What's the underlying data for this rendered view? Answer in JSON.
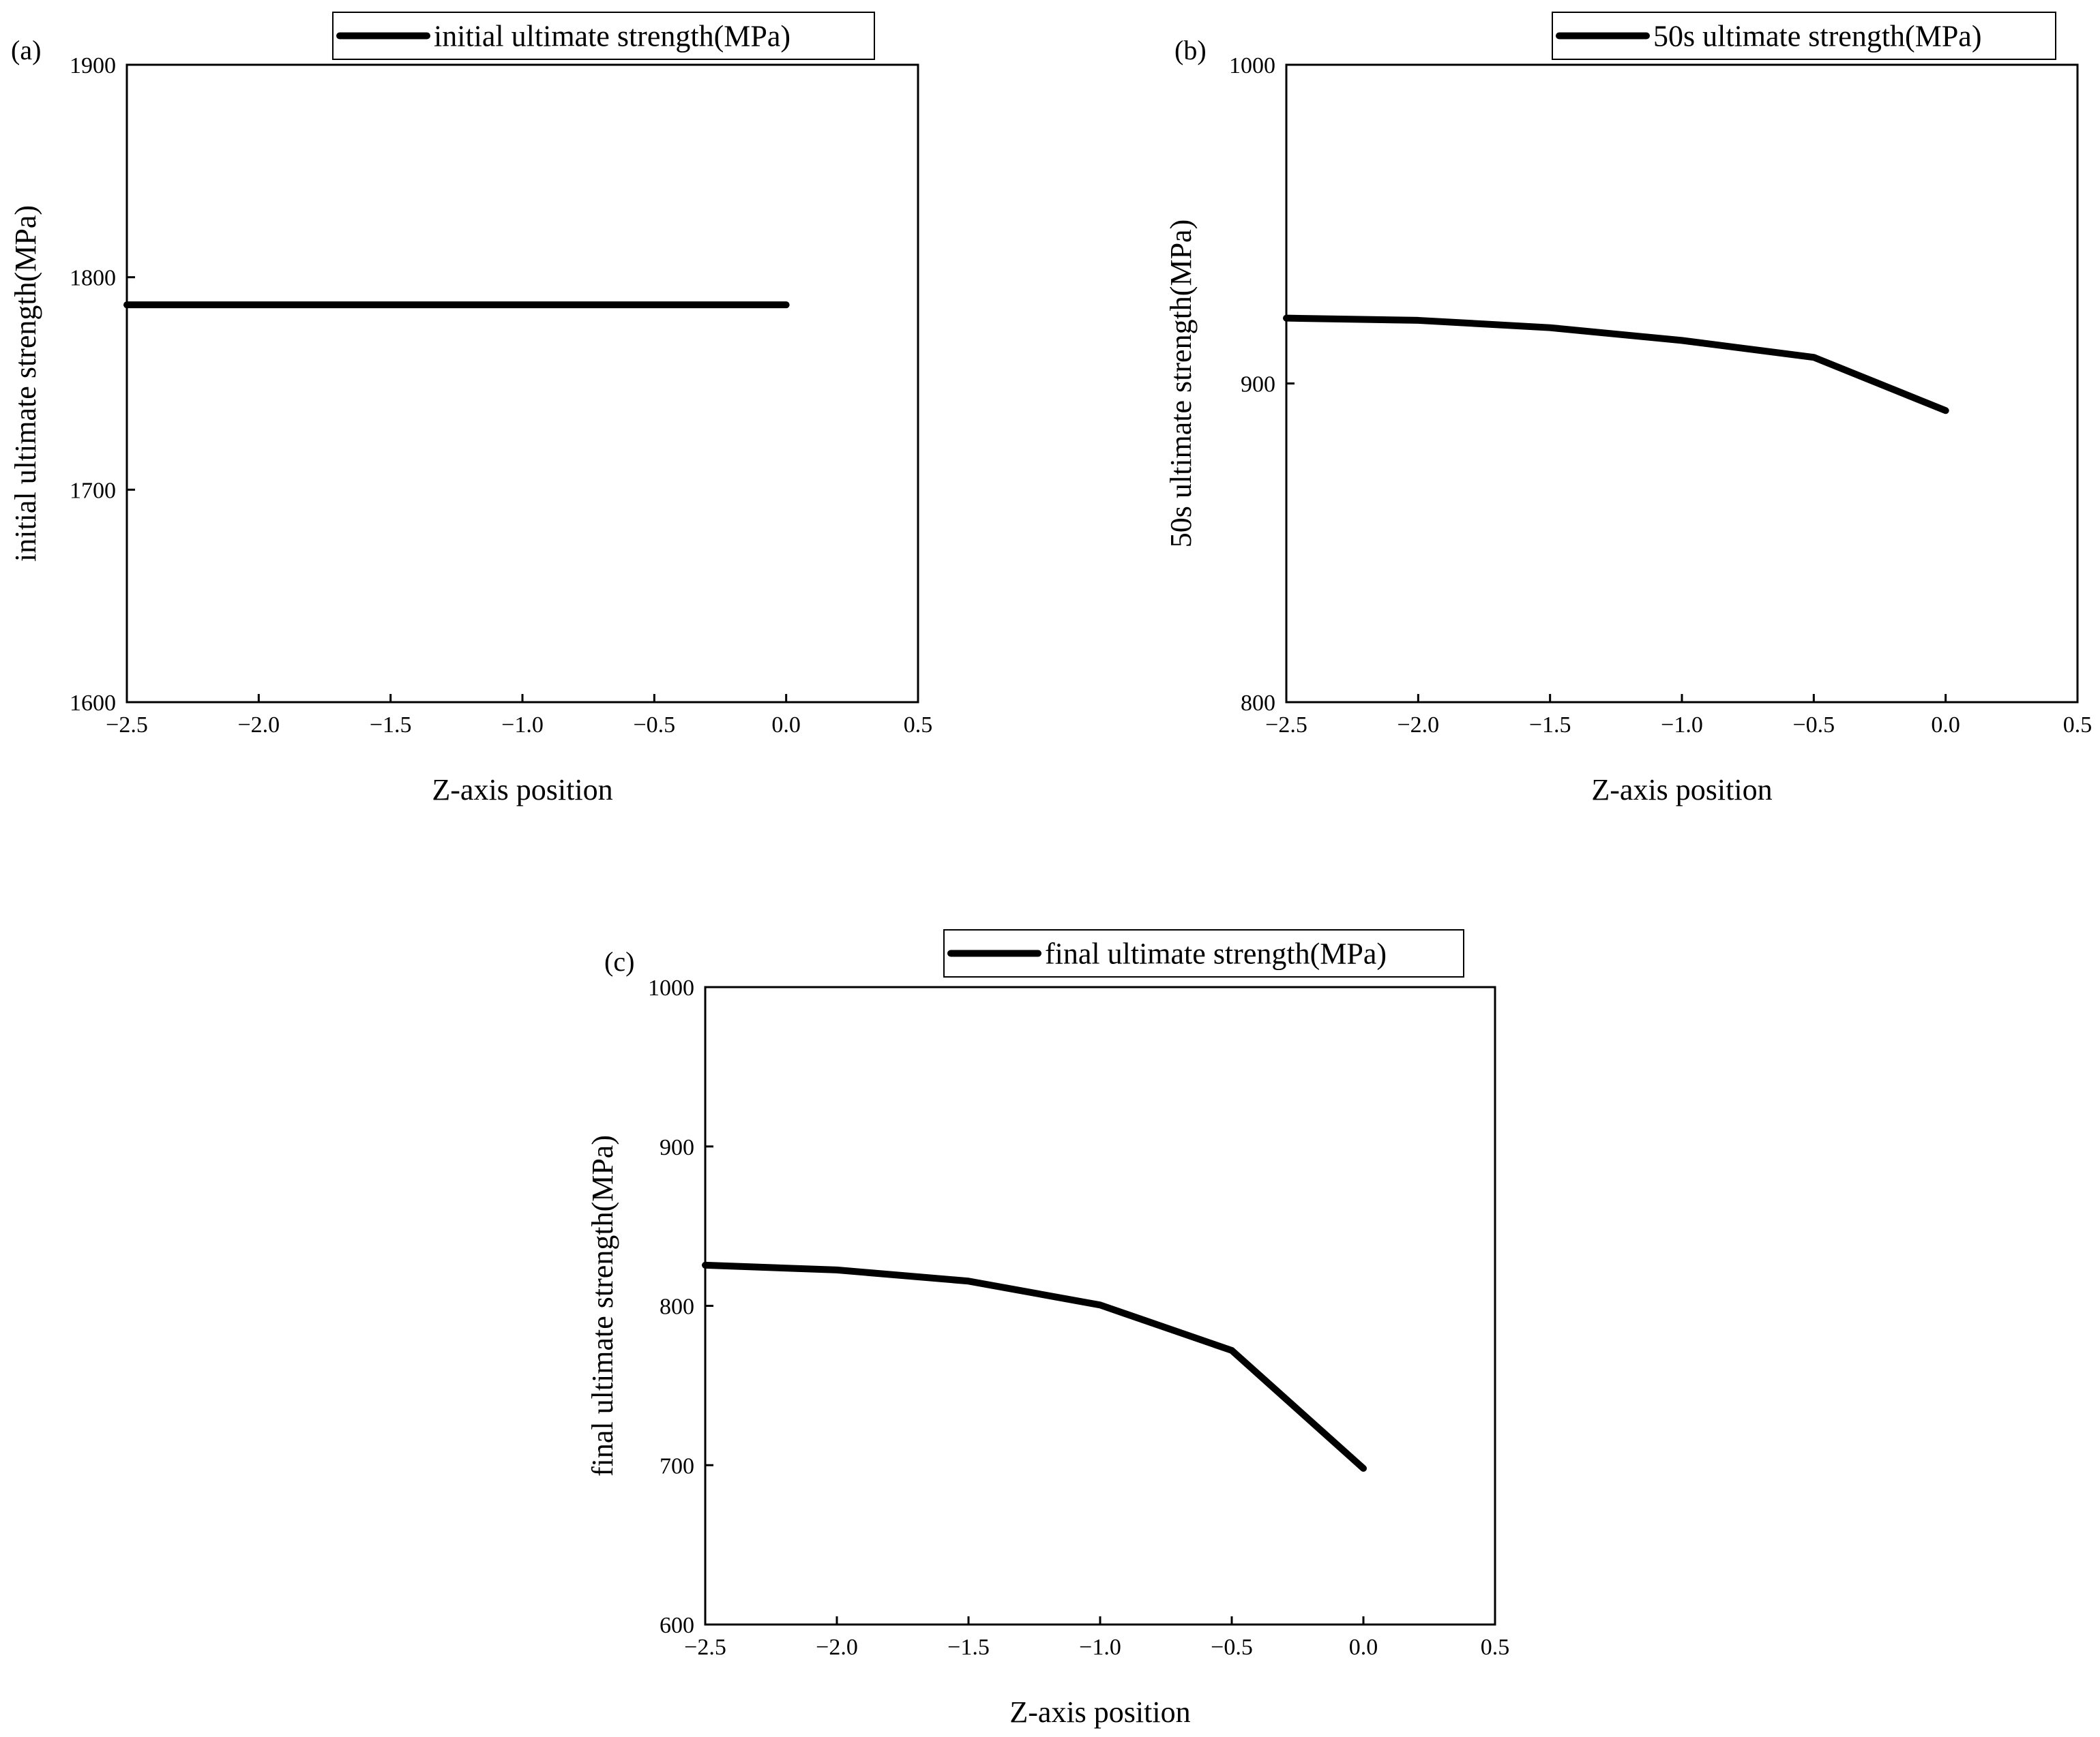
{
  "chart_data": [
    {
      "id": "a",
      "type": "line",
      "panel_label": "(a)",
      "legend": "initial ultimate strength(MPa)",
      "xlabel": "Z-axis position",
      "ylabel": "initial ultimate strength(MPa)",
      "xlim": [
        -2.5,
        0.5
      ],
      "ylim": [
        1600,
        1900
      ],
      "xticks": [
        "−2.5",
        "−2.0",
        "−1.5",
        "−1.0",
        "−0.5",
        "0.0",
        "0.5"
      ],
      "xtick_values": [
        -2.5,
        -2.0,
        -1.5,
        -1.0,
        -0.5,
        0.0,
        0.5
      ],
      "yticks": [
        "1600",
        "1700",
        "1800",
        "1900"
      ],
      "ytick_values": [
        1600,
        1700,
        1800,
        1900
      ],
      "series": [
        {
          "name": "initial ultimate strength(MPa)",
          "x": [
            -2.5,
            -2.0,
            -1.5,
            -1.0,
            -0.5,
            0.0
          ],
          "y": [
            1787,
            1787,
            1787,
            1787,
            1787,
            1787
          ]
        }
      ]
    },
    {
      "id": "b",
      "type": "line",
      "panel_label": "(b)",
      "legend": "50s ultimate strength(MPa)",
      "xlabel": "Z-axis position",
      "ylabel": "50s ultimate strength(MPa)",
      "xlim": [
        -2.5,
        0.5
      ],
      "ylim": [
        800,
        1000
      ],
      "xticks": [
        "−2.5",
        "−2.0",
        "−1.5",
        "−1.0",
        "−0.5",
        "0.0",
        "0.5"
      ],
      "xtick_values": [
        -2.5,
        -2.0,
        -1.5,
        -1.0,
        -0.5,
        0.0,
        0.5
      ],
      "yticks": [
        "800",
        "900",
        "1000"
      ],
      "ytick_values": [
        800,
        900,
        1000
      ],
      "series": [
        {
          "name": "50s ultimate strength(MPa)",
          "x": [
            -2.5,
            -2.0,
            -1.5,
            -1.0,
            -0.5,
            0.0
          ],
          "y": [
            920.5,
            919.8,
            917.5,
            913.5,
            908.2,
            891.5
          ]
        }
      ]
    },
    {
      "id": "c",
      "type": "line",
      "panel_label": "(c)",
      "legend": "final ultimate strength(MPa)",
      "xlabel": "Z-axis position",
      "ylabel": "final ultimate strength(MPa)",
      "xlim": [
        -2.5,
        0.5
      ],
      "ylim": [
        600,
        1000
      ],
      "xticks": [
        "−2.5",
        "−2.0",
        "−1.5",
        "−1.0",
        "−0.5",
        "0.0",
        "0.5"
      ],
      "xtick_values": [
        -2.5,
        -2.0,
        -1.5,
        -1.0,
        -0.5,
        0.0,
        0.5
      ],
      "yticks": [
        "600",
        "700",
        "800",
        "900",
        "1000"
      ],
      "ytick_values": [
        600,
        700,
        800,
        900,
        1000
      ],
      "series": [
        {
          "name": "final ultimate strength(MPa)",
          "x": [
            -2.5,
            -2.0,
            -1.5,
            -1.0,
            -0.5,
            0.0
          ],
          "y": [
            825.5,
            822.5,
            815.5,
            800.5,
            772,
            698
          ]
        }
      ]
    }
  ]
}
